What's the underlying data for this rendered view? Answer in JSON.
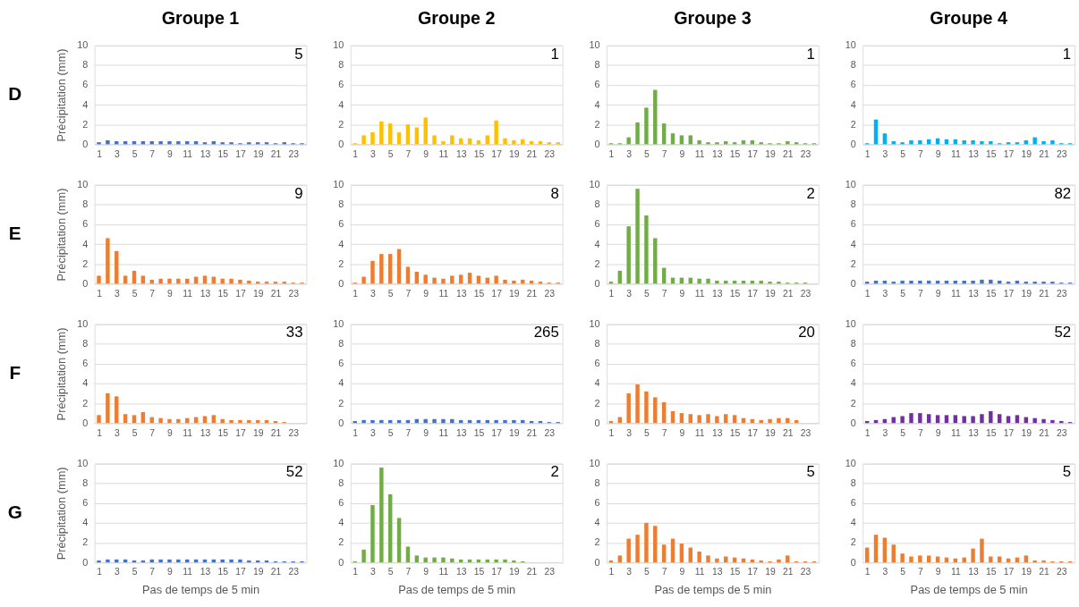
{
  "chart_data": [
    {
      "type": "bar",
      "title": "Groupe 1",
      "ylabel": "Précipitation (mm)",
      "annotations": [
        "5",
        "D"
      ],
      "x": [
        1,
        2,
        3,
        4,
        5,
        6,
        7,
        8,
        9,
        10,
        11,
        12,
        13,
        14,
        15,
        16,
        17,
        18,
        19,
        20,
        21,
        22,
        23,
        24
      ],
      "values": [
        0.2,
        0.4,
        0.3,
        0.3,
        0.3,
        0.3,
        0.3,
        0.3,
        0.3,
        0.3,
        0.3,
        0.3,
        0.2,
        0.3,
        0.2,
        0.2,
        0.1,
        0.2,
        0.2,
        0.2,
        0.1,
        0.2,
        0.1,
        0.1
      ],
      "color": "#4472c4",
      "xlim": [
        0.5,
        24.5
      ],
      "xticks": [
        1,
        3,
        5,
        7,
        9,
        11,
        13,
        15,
        17,
        19,
        21,
        23
      ],
      "ylim": [
        0,
        10
      ],
      "yticks": [
        0,
        2,
        4,
        6,
        8,
        10
      ],
      "grid": "y"
    },
    {
      "type": "bar",
      "title": "Groupe 2",
      "annotations": [
        "1"
      ],
      "x": [
        1,
        2,
        3,
        4,
        5,
        6,
        7,
        8,
        9,
        10,
        11,
        12,
        13,
        14,
        15,
        16,
        17,
        18,
        19,
        20,
        21,
        22,
        23,
        24
      ],
      "values": [
        0.1,
        0.9,
        1.2,
        2.3,
        2.1,
        1.2,
        2.0,
        1.7,
        2.7,
        0.9,
        0.3,
        0.9,
        0.6,
        0.6,
        0.4,
        0.9,
        2.4,
        0.6,
        0.4,
        0.5,
        0.3,
        0.3,
        0.2,
        0.2
      ],
      "color": "#ffc000",
      "xlim": [
        0.5,
        24.5
      ],
      "xticks": [
        1,
        3,
        5,
        7,
        9,
        11,
        13,
        15,
        17,
        19,
        21,
        23
      ],
      "ylim": [
        0,
        10
      ],
      "yticks": [
        0,
        2,
        4,
        6,
        8,
        10
      ],
      "grid": "y"
    },
    {
      "type": "bar",
      "title": "Groupe 3",
      "annotations": [
        "1"
      ],
      "x": [
        1,
        2,
        3,
        4,
        5,
        6,
        7,
        8,
        9,
        10,
        11,
        12,
        13,
        14,
        15,
        16,
        17,
        18,
        19,
        20,
        21,
        22,
        23,
        24
      ],
      "values": [
        0.1,
        0.1,
        0.7,
        2.2,
        3.7,
        5.5,
        2.1,
        1.1,
        0.9,
        0.9,
        0.4,
        0.2,
        0.2,
        0.3,
        0.2,
        0.4,
        0.4,
        0.2,
        0.1,
        0.1,
        0.3,
        0.2,
        0.1,
        0.1
      ],
      "color": "#70ad47",
      "xlim": [
        0.5,
        24.5
      ],
      "xticks": [
        1,
        3,
        5,
        7,
        9,
        11,
        13,
        15,
        17,
        19,
        21,
        23
      ],
      "ylim": [
        0,
        10
      ],
      "yticks": [
        0,
        2,
        4,
        6,
        8,
        10
      ],
      "grid": "y"
    },
    {
      "type": "bar",
      "title": "Groupe 4",
      "annotations": [
        "1"
      ],
      "x": [
        1,
        2,
        3,
        4,
        5,
        6,
        7,
        8,
        9,
        10,
        11,
        12,
        13,
        14,
        15,
        16,
        17,
        18,
        19,
        20,
        21,
        22,
        23,
        24
      ],
      "values": [
        0.1,
        2.5,
        1.1,
        0.3,
        0.2,
        0.4,
        0.4,
        0.5,
        0.6,
        0.5,
        0.5,
        0.4,
        0.4,
        0.3,
        0.3,
        0.1,
        0.2,
        0.2,
        0.4,
        0.7,
        0.3,
        0.4,
        0.1,
        0.1
      ],
      "color": "#00b0f0",
      "xlim": [
        0.5,
        24.5
      ],
      "xticks": [
        1,
        3,
        5,
        7,
        9,
        11,
        13,
        15,
        17,
        19,
        21,
        23
      ],
      "ylim": [
        0,
        10
      ],
      "yticks": [
        0,
        2,
        4,
        6,
        8,
        10
      ],
      "grid": "y"
    },
    {
      "type": "bar",
      "ylabel": "Précipitation (mm)",
      "annotations": [
        "9",
        "E"
      ],
      "x": [
        1,
        2,
        3,
        4,
        5,
        6,
        7,
        8,
        9,
        10,
        11,
        12,
        13,
        14,
        15,
        16,
        17,
        18,
        19,
        20,
        21,
        22,
        23,
        24
      ],
      "values": [
        0.8,
        4.6,
        3.3,
        0.8,
        1.3,
        0.8,
        0.4,
        0.5,
        0.5,
        0.5,
        0.5,
        0.7,
        0.8,
        0.7,
        0.5,
        0.5,
        0.4,
        0.3,
        0.2,
        0.2,
        0.2,
        0.2,
        0.1,
        0.1
      ],
      "color": "#ed7d31",
      "xlim": [
        0.5,
        24.5
      ],
      "xticks": [
        1,
        3,
        5,
        7,
        9,
        11,
        13,
        15,
        17,
        19,
        21,
        23
      ],
      "ylim": [
        0,
        10
      ],
      "yticks": [
        0,
        2,
        4,
        6,
        8,
        10
      ],
      "grid": "y"
    },
    {
      "type": "bar",
      "annotations": [
        "8"
      ],
      "x": [
        1,
        2,
        3,
        4,
        5,
        6,
        7,
        8,
        9,
        10,
        11,
        12,
        13,
        14,
        15,
        16,
        17,
        18,
        19,
        20,
        21,
        22,
        23,
        24
      ],
      "values": [
        0.1,
        0.7,
        2.3,
        3.0,
        3.0,
        3.5,
        1.7,
        1.2,
        0.9,
        0.6,
        0.5,
        0.8,
        0.9,
        1.1,
        0.8,
        0.6,
        0.8,
        0.4,
        0.3,
        0.4,
        0.3,
        0.2,
        0.1,
        0.1
      ],
      "color": "#ed7d31",
      "xlim": [
        0.5,
        24.5
      ],
      "xticks": [
        1,
        3,
        5,
        7,
        9,
        11,
        13,
        15,
        17,
        19,
        21,
        23
      ],
      "ylim": [
        0,
        10
      ],
      "yticks": [
        0,
        2,
        4,
        6,
        8,
        10
      ],
      "grid": "y"
    },
    {
      "type": "bar",
      "annotations": [
        "2"
      ],
      "x": [
        1,
        2,
        3,
        4,
        5,
        6,
        7,
        8,
        9,
        10,
        11,
        12,
        13,
        14,
        15,
        16,
        17,
        18,
        19,
        20,
        21,
        22,
        23
      ],
      "values": [
        0.2,
        1.3,
        5.8,
        9.6,
        6.9,
        4.6,
        1.6,
        0.6,
        0.6,
        0.6,
        0.5,
        0.5,
        0.3,
        0.3,
        0.3,
        0.3,
        0.3,
        0.3,
        0.2,
        0.2,
        0.1,
        0.1,
        0.1
      ],
      "color": "#70ad47",
      "xlim": [
        0.5,
        24.5
      ],
      "xticks": [
        1,
        3,
        5,
        7,
        9,
        11,
        13,
        15,
        17,
        19,
        21,
        23
      ],
      "ylim": [
        0,
        10
      ],
      "yticks": [
        0,
        2,
        4,
        6,
        8,
        10
      ],
      "grid": "y"
    },
    {
      "type": "bar",
      "annotations": [
        "82"
      ],
      "x": [
        1,
        2,
        3,
        4,
        5,
        6,
        7,
        8,
        9,
        10,
        11,
        12,
        13,
        14,
        15,
        16,
        17,
        18,
        19,
        20,
        21,
        22,
        23,
        24
      ],
      "values": [
        0.2,
        0.3,
        0.3,
        0.2,
        0.3,
        0.3,
        0.3,
        0.3,
        0.3,
        0.3,
        0.3,
        0.3,
        0.3,
        0.4,
        0.4,
        0.3,
        0.2,
        0.3,
        0.2,
        0.2,
        0.2,
        0.2,
        0.1,
        0.1
      ],
      "color": "#4472c4",
      "xlim": [
        0.5,
        24.5
      ],
      "xticks": [
        1,
        3,
        5,
        7,
        9,
        11,
        13,
        15,
        17,
        19,
        21,
        23
      ],
      "ylim": [
        0,
        10
      ],
      "yticks": [
        0,
        2,
        4,
        6,
        8,
        10
      ],
      "grid": "y"
    },
    {
      "type": "bar",
      "ylabel": "Précipitation (mm)",
      "annotations": [
        "33",
        "F"
      ],
      "x": [
        1,
        2,
        3,
        4,
        5,
        6,
        7,
        8,
        9,
        10,
        11,
        12,
        13,
        14,
        15,
        16,
        17,
        18,
        19,
        20,
        21,
        22
      ],
      "values": [
        0.8,
        3.0,
        2.7,
        0.9,
        0.8,
        1.1,
        0.6,
        0.5,
        0.4,
        0.4,
        0.5,
        0.6,
        0.7,
        0.8,
        0.4,
        0.3,
        0.3,
        0.3,
        0.3,
        0.3,
        0.2,
        0.1
      ],
      "color": "#ed7d31",
      "xlim": [
        0.5,
        24.5
      ],
      "xticks": [
        1,
        3,
        5,
        7,
        9,
        11,
        13,
        15,
        17,
        19,
        21,
        23
      ],
      "ylim": [
        0,
        10
      ],
      "yticks": [
        0,
        2,
        4,
        6,
        8,
        10
      ],
      "grid": "y"
    },
    {
      "type": "bar",
      "annotations": [
        "265"
      ],
      "x": [
        1,
        2,
        3,
        4,
        5,
        6,
        7,
        8,
        9,
        10,
        11,
        12,
        13,
        14,
        15,
        16,
        17,
        18,
        19,
        20,
        21,
        22,
        23,
        24
      ],
      "values": [
        0.2,
        0.3,
        0.3,
        0.3,
        0.3,
        0.3,
        0.3,
        0.4,
        0.4,
        0.4,
        0.4,
        0.4,
        0.3,
        0.3,
        0.3,
        0.3,
        0.3,
        0.3,
        0.3,
        0.3,
        0.2,
        0.2,
        0.1,
        0.1
      ],
      "color": "#4472c4",
      "xlim": [
        0.5,
        24.5
      ],
      "xticks": [
        1,
        3,
        5,
        7,
        9,
        11,
        13,
        15,
        17,
        19,
        21,
        23
      ],
      "ylim": [
        0,
        10
      ],
      "yticks": [
        0,
        2,
        4,
        6,
        8,
        10
      ],
      "grid": "y"
    },
    {
      "type": "bar",
      "annotations": [
        "20"
      ],
      "x": [
        1,
        2,
        3,
        4,
        5,
        6,
        7,
        8,
        9,
        10,
        11,
        12,
        13,
        14,
        15,
        16,
        17,
        18,
        19,
        20,
        21,
        22
      ],
      "values": [
        0.2,
        0.6,
        3.0,
        3.9,
        3.2,
        2.6,
        2.1,
        1.2,
        1.0,
        0.9,
        0.8,
        0.9,
        0.7,
        0.9,
        0.8,
        0.5,
        0.4,
        0.3,
        0.4,
        0.5,
        0.5,
        0.3
      ],
      "color": "#ed7d31",
      "xlim": [
        0.5,
        24.5
      ],
      "xticks": [
        1,
        3,
        5,
        7,
        9,
        11,
        13,
        15,
        17,
        19,
        21,
        23
      ],
      "ylim": [
        0,
        10
      ],
      "yticks": [
        0,
        2,
        4,
        6,
        8,
        10
      ],
      "grid": "y"
    },
    {
      "type": "bar",
      "annotations": [
        "52"
      ],
      "x": [
        1,
        2,
        3,
        4,
        5,
        6,
        7,
        8,
        9,
        10,
        11,
        12,
        13,
        14,
        15,
        16,
        17,
        18,
        19,
        20,
        21,
        22,
        23,
        24
      ],
      "values": [
        0.2,
        0.3,
        0.4,
        0.6,
        0.7,
        1.0,
        1.0,
        0.9,
        0.8,
        0.8,
        0.8,
        0.7,
        0.7,
        0.9,
        1.2,
        0.9,
        0.7,
        0.8,
        0.6,
        0.5,
        0.4,
        0.3,
        0.2,
        0.1
      ],
      "color": "#7030a0",
      "xlim": [
        0.5,
        24.5
      ],
      "xticks": [
        1,
        3,
        5,
        7,
        9,
        11,
        13,
        15,
        17,
        19,
        21,
        23
      ],
      "ylim": [
        0,
        10
      ],
      "yticks": [
        0,
        2,
        4,
        6,
        8,
        10
      ],
      "grid": "y"
    },
    {
      "type": "bar",
      "ylabel": "Précipitation (mm)",
      "xlabel": "Pas de temps de 5 min",
      "annotations": [
        "52",
        "G"
      ],
      "x": [
        1,
        2,
        3,
        4,
        5,
        6,
        7,
        8,
        9,
        10,
        11,
        12,
        13,
        14,
        15,
        16,
        17,
        18,
        19,
        20,
        21,
        22,
        23,
        24
      ],
      "values": [
        0.2,
        0.3,
        0.3,
        0.3,
        0.2,
        0.2,
        0.3,
        0.3,
        0.3,
        0.3,
        0.3,
        0.3,
        0.3,
        0.3,
        0.3,
        0.3,
        0.3,
        0.2,
        0.2,
        0.2,
        0.1,
        0.1,
        0.1,
        0.1
      ],
      "color": "#4472c4",
      "xlim": [
        0.5,
        24.5
      ],
      "xticks": [
        1,
        3,
        5,
        7,
        9,
        11,
        13,
        15,
        17,
        19,
        21,
        23
      ],
      "ylim": [
        0,
        10
      ],
      "yticks": [
        0,
        2,
        4,
        6,
        8,
        10
      ],
      "grid": "y"
    },
    {
      "type": "bar",
      "xlabel": "Pas de temps de 5 min",
      "annotations": [
        "2"
      ],
      "x": [
        1,
        2,
        3,
        4,
        5,
        6,
        7,
        8,
        9,
        10,
        11,
        12,
        13,
        14,
        15,
        16,
        17,
        18,
        19,
        20
      ],
      "values": [
        0.1,
        1.3,
        5.8,
        9.6,
        6.9,
        4.5,
        1.6,
        0.7,
        0.5,
        0.5,
        0.5,
        0.4,
        0.3,
        0.3,
        0.3,
        0.3,
        0.3,
        0.3,
        0.2,
        0.1
      ],
      "color": "#70ad47",
      "xlim": [
        0.5,
        24.5
      ],
      "xticks": [
        1,
        3,
        5,
        7,
        9,
        11,
        13,
        15,
        17,
        19,
        21,
        23
      ],
      "ylim": [
        0,
        10
      ],
      "yticks": [
        0,
        2,
        4,
        6,
        8,
        10
      ],
      "grid": "y"
    },
    {
      "type": "bar",
      "xlabel": "Pas de temps de 5 min",
      "annotations": [
        "5"
      ],
      "x": [
        1,
        2,
        3,
        4,
        5,
        6,
        7,
        8,
        9,
        10,
        11,
        12,
        13,
        14,
        15,
        16,
        17,
        18,
        19,
        20,
        21,
        22,
        23,
        24
      ],
      "values": [
        0.2,
        0.7,
        2.4,
        2.8,
        4.0,
        3.7,
        1.8,
        2.4,
        1.9,
        1.5,
        1.1,
        0.7,
        0.4,
        0.6,
        0.5,
        0.4,
        0.3,
        0.2,
        0.1,
        0.3,
        0.7,
        0.1,
        0.1,
        0.1
      ],
      "color": "#ed7d31",
      "xlim": [
        0.5,
        24.5
      ],
      "xticks": [
        1,
        3,
        5,
        7,
        9,
        11,
        13,
        15,
        17,
        19,
        21,
        23
      ],
      "ylim": [
        0,
        10
      ],
      "yticks": [
        0,
        2,
        4,
        6,
        8,
        10
      ],
      "grid": "y"
    },
    {
      "type": "bar",
      "xlabel": "Pas de temps de 5 min",
      "annotations": [
        "5"
      ],
      "x": [
        1,
        2,
        3,
        4,
        5,
        6,
        7,
        8,
        9,
        10,
        11,
        12,
        13,
        14,
        15,
        16,
        17,
        18,
        19,
        20,
        21,
        22,
        23,
        24
      ],
      "values": [
        1.5,
        2.8,
        2.5,
        1.8,
        0.9,
        0.6,
        0.7,
        0.7,
        0.6,
        0.5,
        0.4,
        0.5,
        1.4,
        2.4,
        0.6,
        0.6,
        0.4,
        0.5,
        0.7,
        0.2,
        0.2,
        0.1,
        0.1,
        0.1
      ],
      "color": "#ed7d31",
      "xlim": [
        0.5,
        24.5
      ],
      "xticks": [
        1,
        3,
        5,
        7,
        9,
        11,
        13,
        15,
        17,
        19,
        21,
        23
      ],
      "ylim": [
        0,
        10
      ],
      "yticks": [
        0,
        2,
        4,
        6,
        8,
        10
      ],
      "grid": "y"
    }
  ]
}
